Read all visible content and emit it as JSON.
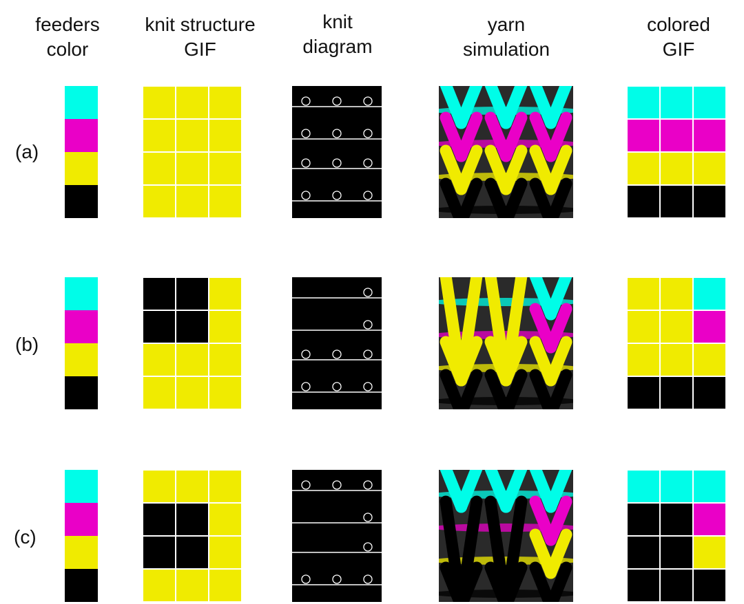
{
  "headers": {
    "feeders": "feeders\ncolor",
    "knit_structure": "knit structure\nGIF",
    "knit_diagram": "knit\ndiagram",
    "yarn_simulation": "yarn\nsimulation",
    "colored": "colored\nGIF"
  },
  "colors": {
    "cyan": "#00fde8",
    "magenta": "#ea00c7",
    "yellow": "#f0eb00",
    "black": "#000000",
    "grid_line": "#ffffff"
  },
  "feeder_sequence": [
    "cyan",
    "magenta",
    "yellow",
    "black"
  ],
  "rows": [
    {
      "label": "(a)",
      "structure": [
        [
          "Y",
          "Y",
          "Y"
        ],
        [
          "Y",
          "Y",
          "Y"
        ],
        [
          "Y",
          "Y",
          "Y"
        ],
        [
          "Y",
          "Y",
          "Y"
        ]
      ],
      "diagram_loops": [
        [
          1,
          1,
          1
        ],
        [
          1,
          1,
          1
        ],
        [
          1,
          1,
          1
        ],
        [
          1,
          1,
          1
        ]
      ],
      "colored": [
        [
          "C",
          "C",
          "C"
        ],
        [
          "M",
          "M",
          "M"
        ],
        [
          "Y",
          "Y",
          "Y"
        ],
        [
          "K",
          "K",
          "K"
        ]
      ]
    },
    {
      "label": "(b)",
      "structure": [
        [
          "K",
          "K",
          "Y"
        ],
        [
          "K",
          "K",
          "Y"
        ],
        [
          "Y",
          "Y",
          "Y"
        ],
        [
          "Y",
          "Y",
          "Y"
        ]
      ],
      "diagram_loops": [
        [
          0,
          0,
          1
        ],
        [
          0,
          0,
          1
        ],
        [
          1,
          1,
          1
        ],
        [
          1,
          1,
          1
        ]
      ],
      "colored": [
        [
          "Y",
          "Y",
          "C"
        ],
        [
          "Y",
          "Y",
          "M"
        ],
        [
          "Y",
          "Y",
          "Y"
        ],
        [
          "K",
          "K",
          "K"
        ]
      ]
    },
    {
      "label": "(c)",
      "structure": [
        [
          "Y",
          "Y",
          "Y"
        ],
        [
          "K",
          "K",
          "Y"
        ],
        [
          "K",
          "K",
          "Y"
        ],
        [
          "Y",
          "Y",
          "Y"
        ]
      ],
      "diagram_loops": [
        [
          1,
          1,
          1
        ],
        [
          0,
          0,
          1
        ],
        [
          0,
          0,
          1
        ],
        [
          1,
          1,
          1
        ]
      ],
      "colored": [
        [
          "C",
          "C",
          "C"
        ],
        [
          "K",
          "K",
          "M"
        ],
        [
          "K",
          "K",
          "Y"
        ],
        [
          "K",
          "K",
          "K"
        ]
      ]
    }
  ]
}
